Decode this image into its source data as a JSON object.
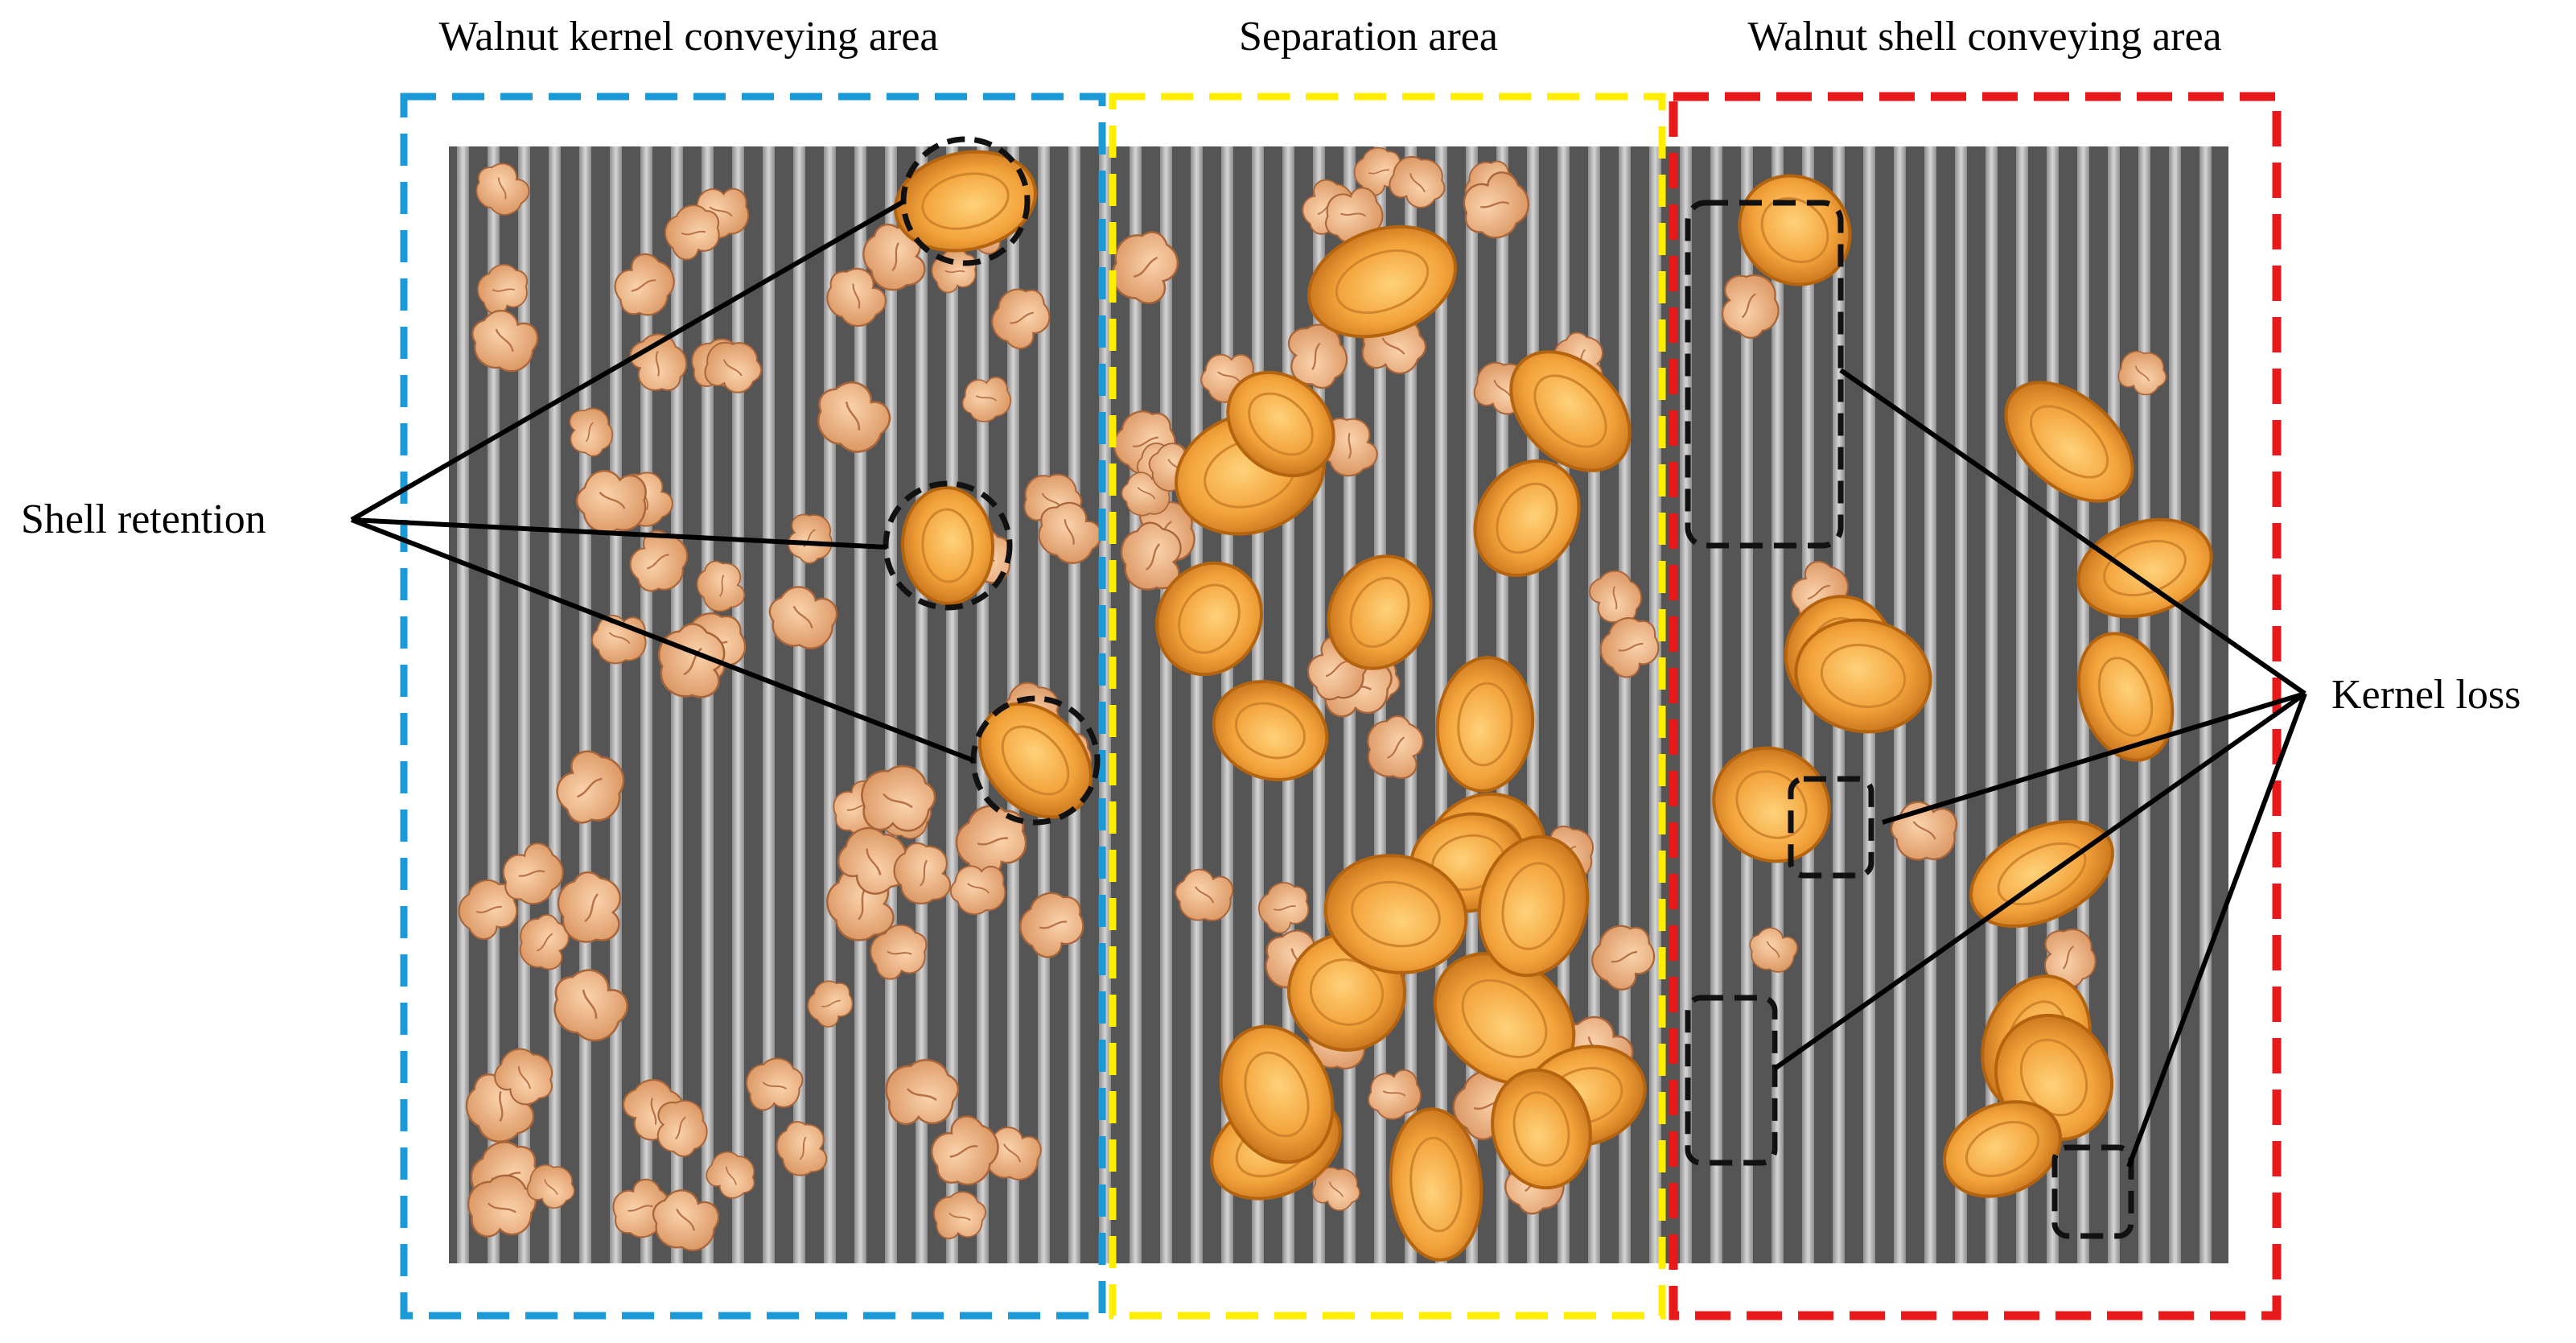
{
  "labels": {
    "kernel_area": "Walnut kernel conveying area",
    "separation_area": "Separation area",
    "shell_area": "Walnut shell conveying area",
    "shell_retention": "Shell retention",
    "kernel_loss": "Kernel loss"
  },
  "colors": {
    "kernel_area_border": "#1a9ad6",
    "separation_area_border": "#ffee00",
    "shell_area_border": "#e8191b",
    "conveyor_dark": "#555555",
    "conveyor_light": "#b8b8b8",
    "kernel_piece": "#efb58a",
    "shell_half": "#f0a13a",
    "shell_outline": "#b4630f",
    "callout_line": "#000000"
  },
  "particles": {
    "kernel_area_kernels": 64,
    "separation_area_kernels": 40,
    "separation_area_shells": 20,
    "shell_area_shells": 11,
    "shell_area_kernels": 6
  }
}
